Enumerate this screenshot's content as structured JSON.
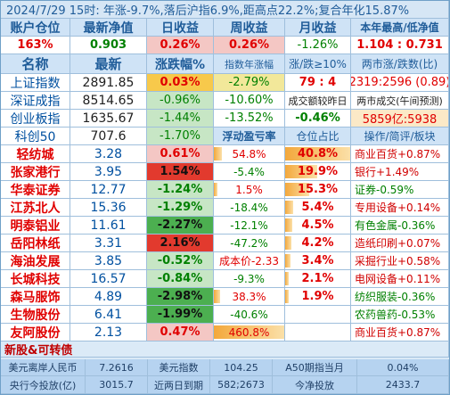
{
  "title_bar": {
    "text": "2024/7/29 15时: 年涨-9.7%,落后沪指6.9%,距高点22.2%;复合年化15.87%"
  },
  "account_headers": [
    "账户仓位",
    "最新净值",
    "日收益",
    "周收益",
    "月收益",
    "本年最高/低净值"
  ],
  "account_values": [
    "163%",
    "0.903",
    "0.26%",
    "0.26%",
    "-1.26%",
    "1.104 : 0.731"
  ],
  "index_headers": [
    "名称",
    "最新",
    "涨跌幅%",
    "指数年涨幅",
    "涨/跌≥10%",
    "两市涨/跌数(比)"
  ],
  "indices": [
    {
      "name": "上证指数",
      "latest": "2891.85",
      "change": "0.03%",
      "year": "-2.79%",
      "col5": "79 : 4",
      "col6": "2319:2596 (0.89)"
    },
    {
      "name": "深证成指",
      "latest": "8514.65",
      "change": "-0.96%",
      "year": "-10.60%",
      "col5": "成交额较昨日",
      "col6": "两市成交(午间预测)"
    },
    {
      "name": "创业板指",
      "latest": "1635.67",
      "change": "-1.44%",
      "year": "-13.52%",
      "col5": "-0.46%",
      "col6": "5859亿:5938"
    }
  ],
  "stock_headers": [
    "科创50",
    "707.6",
    "-1.70%",
    "浮动盈亏率",
    "仓位占比",
    "操作/简评/板块"
  ],
  "stocks": [
    {
      "name": "轻纺城",
      "price": "3.28",
      "change": "0.61%",
      "float": "54.8%",
      "weight": "40.8%",
      "note": "商业百货+0.87%"
    },
    {
      "name": "张家港行",
      "price": "3.95",
      "change": "1.54%",
      "float": "-5.4%",
      "weight": "19.9%",
      "note": "银行+1.49%"
    },
    {
      "name": "华泰证券",
      "price": "12.77",
      "change": "-1.24%",
      "float": "1.5%",
      "weight": "15.3%",
      "note": "证券-0.59%"
    },
    {
      "name": "江苏北人",
      "price": "15.36",
      "change": "-1.29%",
      "float": "-18.4%",
      "weight": "5.4%",
      "note": "专用设备+0.14%"
    },
    {
      "name": "明泰铝业",
      "price": "11.61",
      "change": "-2.27%",
      "float": "-12.1%",
      "weight": "4.5%",
      "note": "有色金属-0.36%"
    },
    {
      "name": "岳阳林纸",
      "price": "3.31",
      "change": "2.16%",
      "float": "-47.2%",
      "weight": "4.2%",
      "note": "造纸印刷+0.07%"
    },
    {
      "name": "海油发展",
      "price": "3.85",
      "change": "-0.52%",
      "float": "成本价-2.33",
      "weight": "3.4%",
      "note": "采掘行业+0.58%"
    },
    {
      "name": "长城科技",
      "price": "16.57",
      "change": "-0.84%",
      "float": "-9.3%",
      "weight": "2.1%",
      "note": "电网设备+0.11%"
    },
    {
      "name": "森马服饰",
      "price": "4.89",
      "change": "-2.98%",
      "float": "38.3%",
      "weight": "1.9%",
      "note": "纺织服装-0.36%"
    },
    {
      "name": "生物股份",
      "price": "6.41",
      "change": "-1.99%",
      "float": "-40.6%",
      "weight": "",
      "note": "农药兽药-0.53%"
    },
    {
      "name": "友阿股份",
      "price": "2.13",
      "change": "0.47%",
      "float": "460.8%",
      "weight": "",
      "note": "商业百货+0.87%"
    }
  ],
  "float_bars": [
    0.12,
    0,
    0.05,
    0,
    0,
    0,
    0,
    0,
    0.09,
    0,
    1.0
  ],
  "weight_bars": [
    1.0,
    0.49,
    0.37,
    0.13,
    0.11,
    0.1,
    0.08,
    0.05,
    0.05,
    0,
    0
  ],
  "footer_label": "新股&可转债",
  "bottom1": {
    "a": "美元离岸人民币",
    "b": "7.2616",
    "c": "美元指数",
    "d": "104.25",
    "e": "A50期指当月",
    "f": "0.04%"
  },
  "bottom2": {
    "a": "央行今投放(亿)",
    "b": "3015.7",
    "c": "近两日到期",
    "d": "582;2673",
    "e": "今净投放",
    "f": "2433.7"
  },
  "colors": {
    "red": "#e00000",
    "green": "#008000",
    "header_blue": "#1f5c99"
  }
}
